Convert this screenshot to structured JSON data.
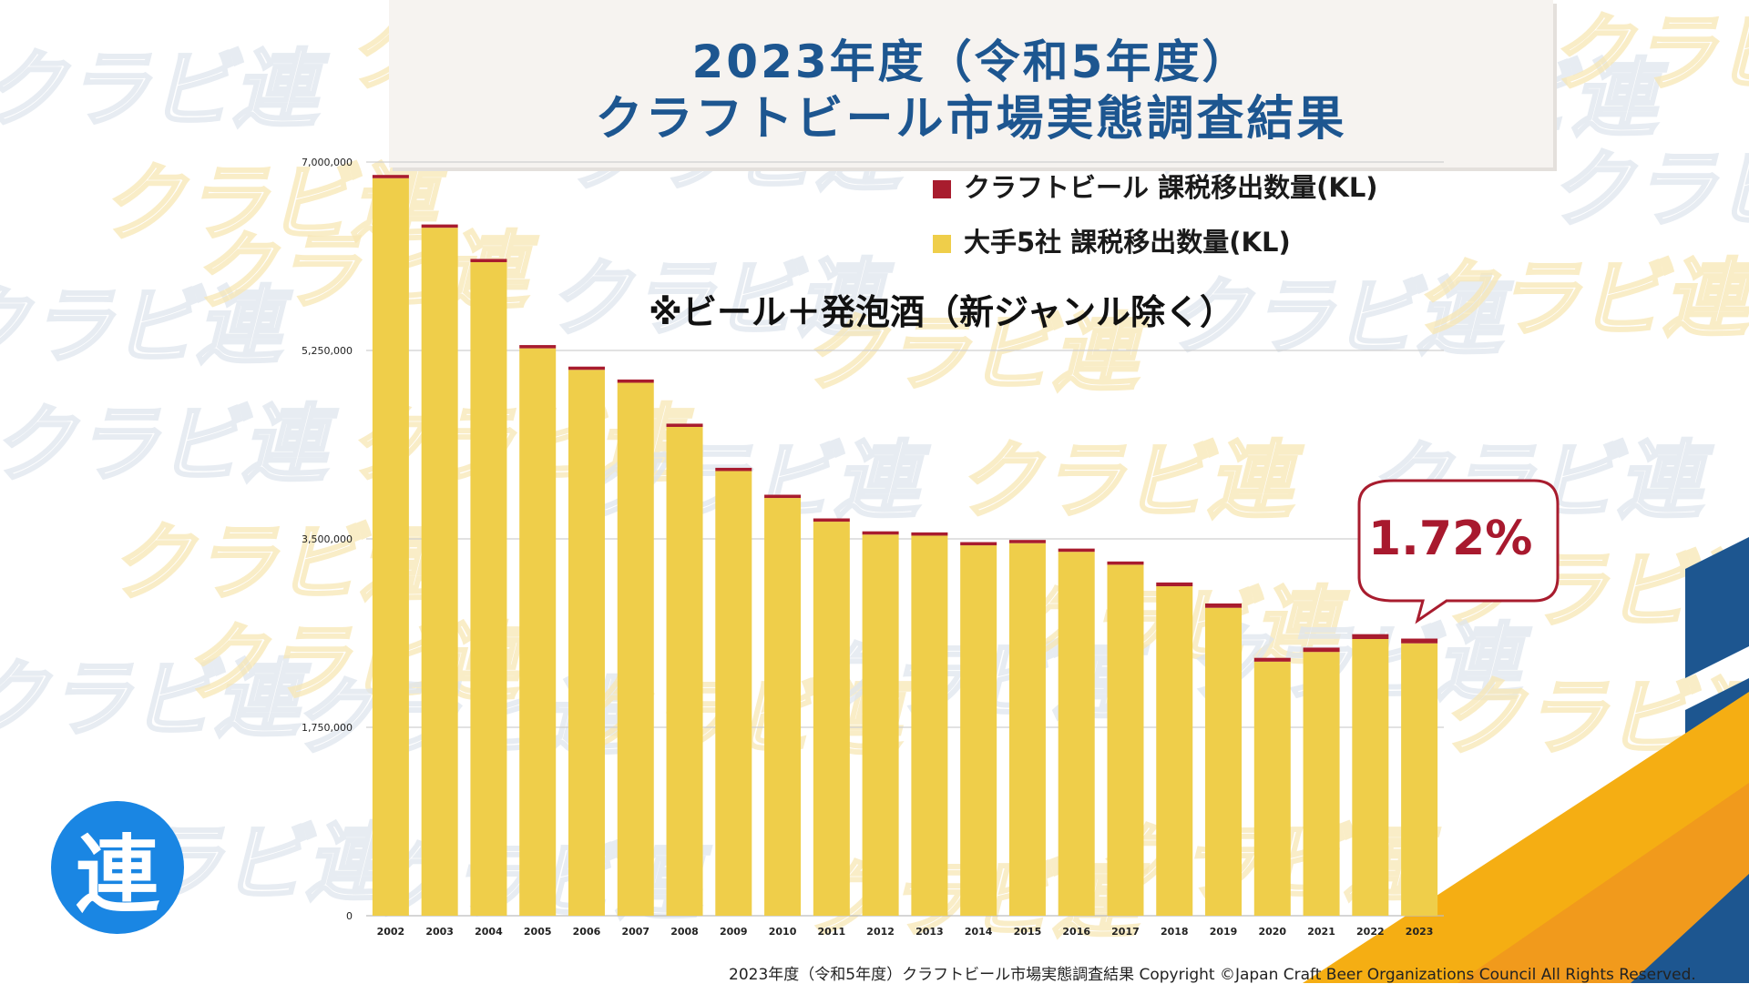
{
  "title": {
    "line1": "2023年度（令和5年度）",
    "line2": "クラフトビール市場実態調査結果"
  },
  "note": "※ビール＋発泡酒（新ジャンル除く）",
  "callout": {
    "text": "1.72%"
  },
  "logo": {
    "text": "連"
  },
  "watermark_text": "クラビ連",
  "footer": "2023年度（令和5年度）クラフトビール市場実態調査結果 Copyright ©Japan Craft Beer Organizations Council All Rights Reserved.",
  "colors": {
    "craft": "#a81c2e",
    "major": "#efce4a",
    "title": "#1d5690",
    "deco_blue": "#1d5690",
    "deco_orange": "#f5ae13",
    "logo": "#1a86e3"
  },
  "chart_data": {
    "type": "bar",
    "stacked": true,
    "categories": [
      "2002",
      "2003",
      "2004",
      "2005",
      "2006",
      "2007",
      "2008",
      "2009",
      "2010",
      "2011",
      "2012",
      "2013",
      "2014",
      "2015",
      "2016",
      "2017",
      "2018",
      "2019",
      "2020",
      "2021",
      "2022",
      "2023"
    ],
    "series": [
      {
        "name": "大手5社 課税移出数量(KL)",
        "values": [
          6850000,
          6390000,
          6070000,
          5270000,
          5070000,
          4950000,
          4540000,
          4130000,
          3880000,
          3660000,
          3540000,
          3530000,
          3440000,
          3460000,
          3380000,
          3260000,
          3060000,
          2860000,
          2360000,
          2450000,
          2570000,
          2530000
        ]
      },
      {
        "name": "クラフトビール 課税移出数量(KL)",
        "values": [
          30000,
          30000,
          30000,
          30000,
          30000,
          30000,
          30000,
          30000,
          30000,
          30000,
          30000,
          30000,
          30000,
          30000,
          30000,
          30000,
          35000,
          40000,
          35000,
          40000,
          45000,
          44000
        ]
      }
    ],
    "y_ticks": [
      "7,000,000",
      "5,250,000",
      "3,500,000",
      "1,750,000",
      "0"
    ],
    "y_tick_values": [
      7000000,
      5250000,
      3500000,
      1750000,
      0
    ],
    "ylim": [
      0,
      7000000
    ],
    "grid": true,
    "legend": "top-right"
  }
}
